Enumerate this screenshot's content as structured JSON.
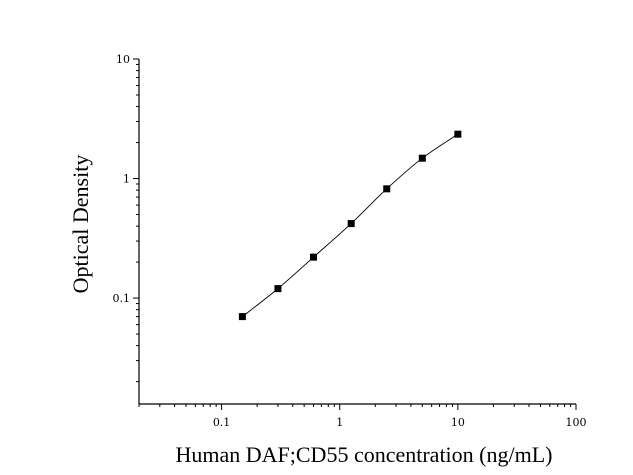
{
  "chart_data": {
    "type": "scatter",
    "title": "",
    "xlabel": "Human DAF;CD55 concentration (ng/mL)",
    "ylabel": "Optical Density",
    "x_scale": "log",
    "y_scale": "log",
    "xlim": [
      0.02,
      100
    ],
    "ylim": [
      0.013,
      10
    ],
    "x_ticks": [
      0.1,
      1,
      10,
      100
    ],
    "x_tick_labels": [
      "0.1",
      "1",
      "10",
      "100"
    ],
    "y_ticks": [
      0.1,
      1,
      10
    ],
    "y_tick_labels": [
      "0.1",
      "1",
      "10"
    ],
    "grid": false,
    "legend": "none",
    "marker": "square",
    "fit_line": "smooth curve",
    "colors": {
      "marker": "#000000",
      "line": "#000000"
    },
    "series": [
      {
        "x": [
          0.15,
          0.3,
          0.6,
          1.25,
          2.5,
          5,
          10
        ],
        "y": [
          0.07,
          0.12,
          0.22,
          0.42,
          0.82,
          1.48,
          2.35
        ]
      }
    ]
  }
}
